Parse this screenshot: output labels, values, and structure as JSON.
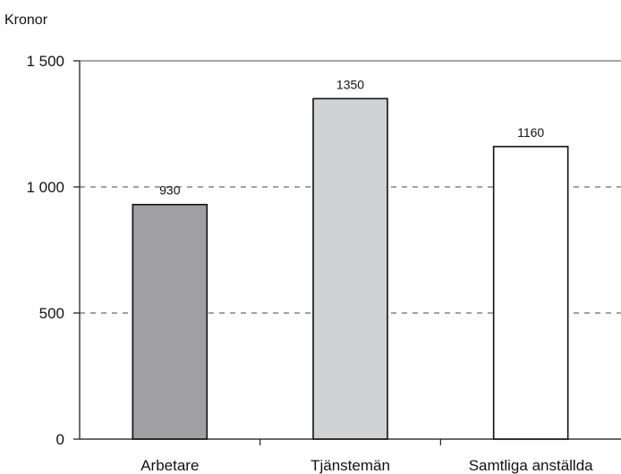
{
  "chart_data": {
    "type": "bar",
    "ylabel": "Kronor",
    "categories": [
      "Arbetare",
      "Tjänstemän",
      "Samtliga anställda"
    ],
    "values": [
      930,
      1350,
      1160
    ],
    "value_labels": [
      "930",
      "1350",
      "1160"
    ],
    "ylim": [
      0,
      1500
    ],
    "yticks": [
      0,
      500,
      1000,
      1500
    ],
    "ytick_labels": [
      "0",
      "500",
      "1 000",
      "1 500"
    ],
    "colors": {
      "bars": [
        "#a0a0a2",
        "#d1d2d4",
        "#ffffff"
      ],
      "bar_stroke": "#111111",
      "grid": "#444444",
      "axis": "#111111",
      "top_line": "#888888"
    },
    "grid": true,
    "grid_style": "dashed",
    "legend": "none"
  }
}
